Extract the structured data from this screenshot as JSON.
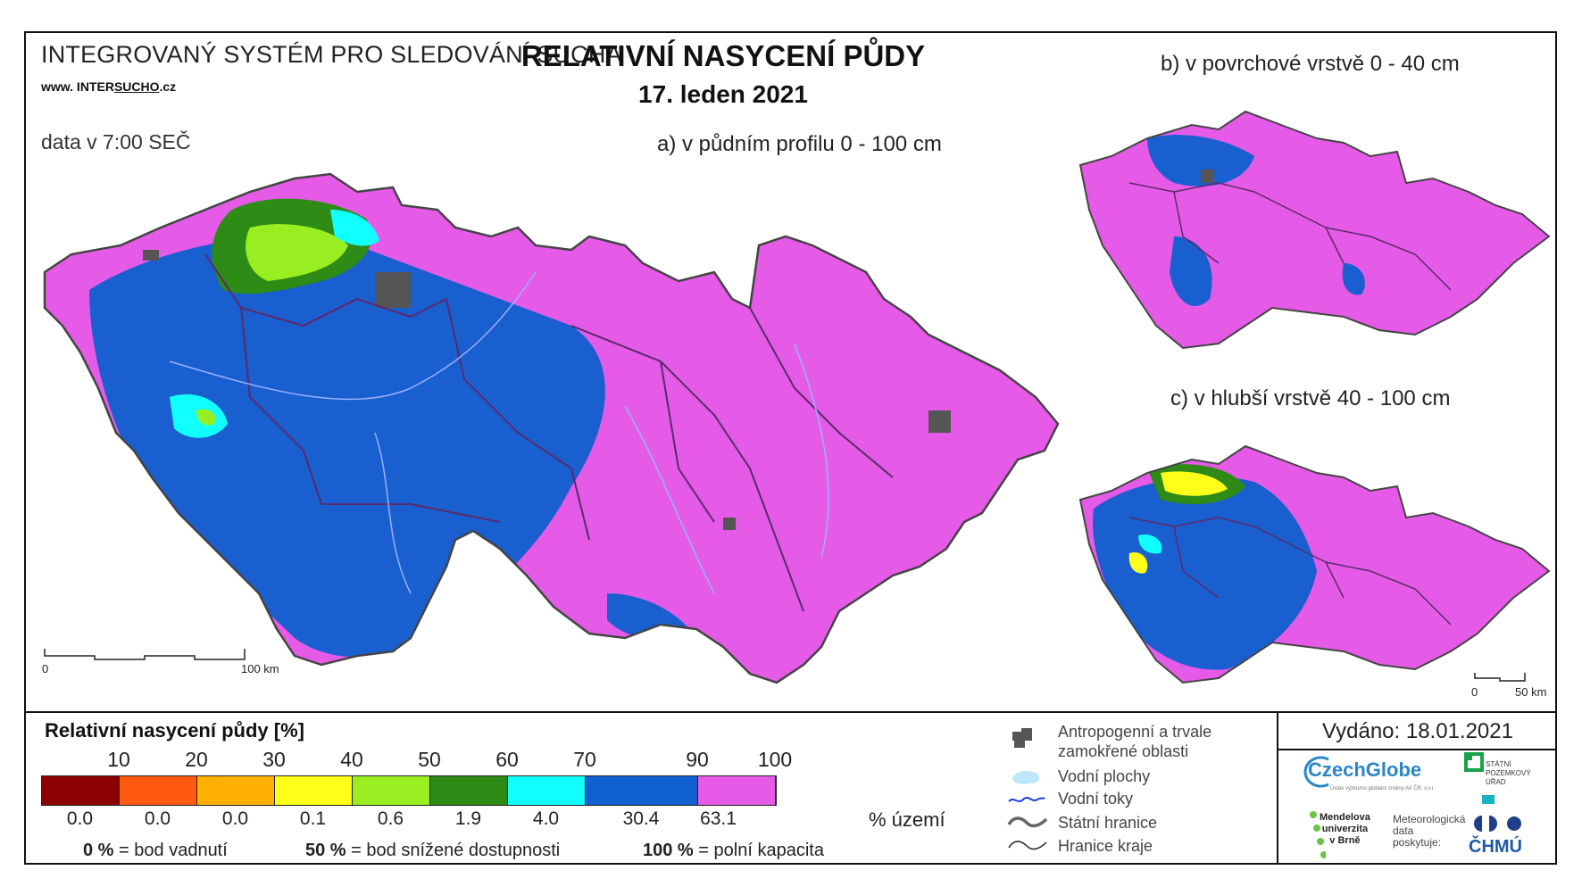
{
  "header": {
    "system": "INTEGROVANÝ SYSTÉM PRO SLEDOVÁNÍ SUCHA",
    "www_prefix": "www. INTER",
    "www_mid": "SUCHO",
    "www_suffix": ".cz",
    "data_time": "data v 7:00 SEČ",
    "title": "RELATIVNÍ NASYCENÍ PŮDY",
    "date": "17. leden 2021"
  },
  "maps": {
    "a_label": "a) v půdním profilu 0 - 100 cm",
    "b_label": "b) v povrchové vrstvě 0 - 40 cm",
    "c_label": "c) v hlubší vrstvě 40 - 100 cm",
    "scale_main_0": "0",
    "scale_main_100": "100 km",
    "scale_small_0": "0",
    "scale_small_50": "50 km"
  },
  "legend": {
    "title": "Relativní nasycení půdy [%]",
    "thresholds": [
      "10",
      "20",
      "30",
      "40",
      "50",
      "60",
      "70",
      "90",
      "100"
    ],
    "colors": [
      "#8b0000",
      "#ff5a10",
      "#ffb000",
      "#ffff1a",
      "#99ee22",
      "#2e8b16",
      "#11ffff",
      "#1160d0",
      "#e55be8"
    ],
    "percent_territory": [
      "0.0",
      "0.0",
      "0.0",
      "0.1",
      "0.6",
      "1.9",
      "4.0",
      "30.4",
      "63.1"
    ],
    "uzemi_label": "% území",
    "note1_bold": "0 %",
    "note1_text": "= bod vadnutí",
    "note2_bold": "50 %",
    "note2_text": "= bod snížené dostupnosti",
    "note3_bold": "100 %",
    "note3_text": "= polní kapacita"
  },
  "symbols": {
    "antropogenni": "Antropogenní a trvale",
    "antropogenni2": "zamokřené oblasti",
    "vodni_plochy": "Vodní plochy",
    "vodni_toky": "Vodní toky",
    "statni_hranice": "Státní hranice",
    "hranice_kraje": "Hranice kraje"
  },
  "footer": {
    "issued": "Vydáno: 18.01.2021",
    "czechglobe": "CzechGlobe",
    "czechglobe_sub": "Ústav výzkumu globální změny AV ČR, v.v.i.",
    "spu1": "STÁTNÍ",
    "spu2": "POZEMKOVÝ",
    "spu3": "ÚŘAD",
    "mendel1": "Mendelova",
    "mendel2": "univerzita",
    "mendel3": "v Brně",
    "meteo1": "Meteorologická",
    "meteo2": "data",
    "meteo3": "poskytuje:",
    "chmu": "ČHMÚ"
  }
}
